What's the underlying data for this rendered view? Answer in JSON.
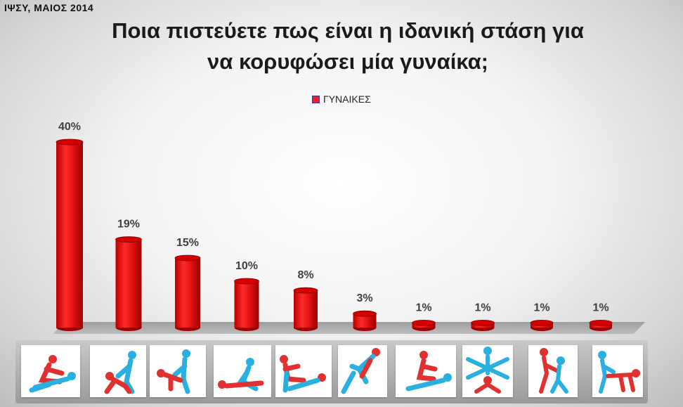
{
  "source_note": "ΙΨΣΥ, ΜΑΙΟΣ 2014",
  "chart_data": {
    "type": "bar",
    "title_lines": [
      "Ποια πιστεύετε πως είναι η ιδανική στάση για",
      "να κορυφώσει μία γυναίκα;"
    ],
    "series": [
      {
        "name": "ΓΥΝΑΙΚΕΣ",
        "values": [
          40,
          19,
          15,
          10,
          8,
          3,
          1,
          1,
          1,
          1
        ]
      }
    ],
    "data_labels": [
      "40%",
      "19%",
      "15%",
      "10%",
      "8%",
      "3%",
      "1%",
      "1%",
      "1%",
      "1%"
    ],
    "value_unit": "%",
    "ylim": [
      0,
      40
    ],
    "grid": false,
    "legend_position": "top-center",
    "bar_color": "#e81313",
    "label_color": "#404040"
  },
  "category_icons": [
    "position-icon-1",
    "position-icon-2",
    "position-icon-3",
    "position-icon-4",
    "position-icon-5",
    "position-icon-6",
    "position-icon-7",
    "position-icon-8",
    "position-icon-9",
    "position-icon-10"
  ],
  "icon_colors": {
    "figure_a": "#e03030",
    "figure_b": "#2ab0e0"
  }
}
